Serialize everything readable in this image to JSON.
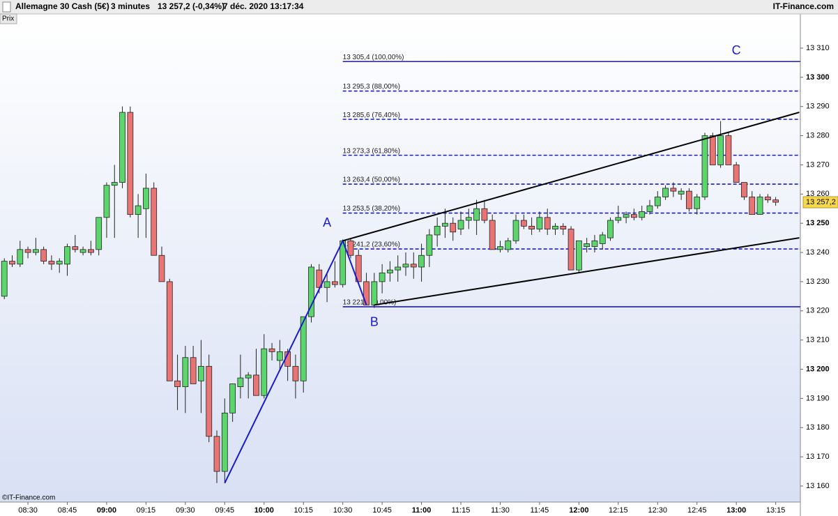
{
  "chart_data": {
    "type": "candlestick",
    "title": "Allemagne 30 Cash (5€)",
    "interval": "3 minutes",
    "quote": "13 257,2 (-0,34%)",
    "timestamp": "7 déc. 2020 13:17:34",
    "brand": "IT-Finance.com",
    "panel_label": "Prix",
    "copyright": "©IT-Finance.com",
    "categories": [
      null,
      null,
      null,
      "08:30",
      null,
      null,
      null,
      null,
      "08:45",
      null,
      null,
      null,
      null,
      "09:00",
      null,
      null,
      null,
      null,
      "09:15",
      null,
      null,
      null,
      null,
      "09:30",
      null,
      null,
      null,
      null,
      "09:45",
      null,
      null,
      null,
      null,
      "10:00",
      null,
      null,
      null,
      null,
      "10:15",
      null,
      null,
      null,
      null,
      "10:30",
      null,
      null,
      null,
      null,
      "10:45",
      null,
      null,
      null,
      null,
      "11:00",
      null,
      null,
      null,
      null,
      "11:15",
      null,
      null,
      null,
      null,
      "11:30",
      null,
      null,
      null,
      null,
      "11:45",
      null,
      null,
      null,
      null,
      "12:00",
      null,
      null,
      null,
      null,
      "12:15",
      null,
      null,
      null,
      null,
      "12:30",
      null,
      null,
      null,
      null,
      "12:45",
      null,
      null,
      null,
      null,
      "13:00",
      null,
      null,
      null,
      null,
      "13:15"
    ],
    "ohlc": {
      "open": [
        13225,
        13237,
        13236,
        13241,
        13240,
        13241,
        13237,
        13236,
        13236,
        13242,
        13240,
        13241,
        13241,
        13252,
        13263,
        13264,
        13288,
        13253,
        13255,
        13262,
        13239,
        13230,
        13196,
        13194,
        13204,
        13196,
        13201,
        13177,
        13165,
        13185,
        13194,
        13197,
        13198,
        13191,
        13207,
        13203,
        13206,
        13201,
        13196,
        13218,
        13234,
        13228,
        13230,
        13229,
        13244,
        13239,
        13230,
        13222,
        13230,
        13233,
        13234,
        13235,
        13236,
        13235,
        13239,
        13246,
        13249,
        13250,
        13248,
        13251,
        13251,
        13255,
        13251,
        13241,
        13241,
        13244,
        13251,
        13249,
        13248,
        13252,
        13248,
        13249,
        13248,
        13234,
        13242,
        13242,
        13243,
        13245,
        13251,
        13252,
        13253,
        13252,
        13254,
        13256,
        13259,
        13262,
        13260,
        13261,
        13255,
        13259,
        13280,
        13270,
        13280,
        13270,
        13264,
        13259,
        13253,
        13259,
        13258
      ],
      "high": [
        13238,
        13239,
        13244,
        13242,
        13245,
        13242,
        13239,
        13238,
        13243,
        13246,
        13242,
        13244,
        13252,
        13264,
        13270,
        13290,
        13290,
        13260,
        13267,
        13264,
        13242,
        13231,
        13205,
        13208,
        13208,
        13210,
        13205,
        13179,
        13190,
        13195,
        13205,
        13199,
        13207,
        13212,
        13209,
        13210,
        13207,
        13205,
        13218,
        13236,
        13236,
        13233,
        13237,
        13244,
        13245,
        13241,
        13233,
        13233,
        13236,
        13237,
        13239,
        13240,
        13240,
        13243,
        13248,
        13252,
        13255,
        13252,
        13254,
        13255,
        13258,
        13258,
        13253,
        13244,
        13245,
        13253,
        13253,
        13252,
        13254,
        13255,
        13250,
        13250,
        13249,
        13244,
        13245,
        13246,
        13247,
        13252,
        13256,
        13254,
        13255,
        13256,
        13258,
        13261,
        13263,
        13264,
        13262,
        13262,
        13260,
        13281,
        13281,
        13285,
        13281,
        13271,
        13264,
        13261,
        13260,
        13260,
        13259
      ],
      "low": [
        13224,
        13235,
        13235,
        13238,
        13239,
        13236,
        13234,
        13233,
        13232,
        13240,
        13239,
        13239,
        13239,
        13245,
        13245,
        13262,
        13252,
        13245,
        13245,
        13239,
        13230,
        13196,
        13186,
        13185,
        13195,
        13185,
        13175,
        13161,
        13161,
        13182,
        13190,
        13190,
        13192,
        13190,
        13203,
        13200,
        13196,
        13190,
        13192,
        13216,
        13226,
        13223,
        13228,
        13228,
        13238,
        13229,
        13222,
        13221,
        13226,
        13230,
        13230,
        13232,
        13231,
        13230,
        13235,
        13242,
        13245,
        13244,
        13246,
        13248,
        13246,
        13250,
        13241,
        13240,
        13240,
        13243,
        13248,
        13246,
        13247,
        13246,
        13246,
        13246,
        13234,
        13233,
        13240,
        13240,
        13241,
        13244,
        13250,
        13250,
        13251,
        13251,
        13253,
        13255,
        13258,
        13259,
        13258,
        13254,
        13253,
        13258,
        13270,
        13269,
        13270,
        13264,
        13258,
        13253,
        13253,
        13257,
        13256
      ],
      "close": [
        13237,
        13236,
        13241,
        13240,
        13241,
        13237,
        13236,
        13237,
        13242,
        13241,
        13241,
        13240,
        13252,
        13263,
        13264,
        13288,
        13253,
        13256,
        13262,
        13239,
        13230,
        13196,
        13194,
        13204,
        13195,
        13201,
        13177,
        13165,
        13185,
        13195,
        13197,
        13198,
        13191,
        13207,
        13206,
        13206,
        13201,
        13196,
        13218,
        13235,
        13228,
        13230,
        13229,
        13244,
        13239,
        13230,
        13222,
        13230,
        13233,
        13234,
        13235,
        13236,
        13235,
        13239,
        13246,
        13249,
        13250,
        13247,
        13251,
        13252,
        13255,
        13251,
        13241,
        13242,
        13244,
        13251,
        13249,
        13248,
        13252,
        13248,
        13249,
        13248,
        13234,
        13244,
        13243,
        13244,
        13246,
        13251,
        13252,
        13253,
        13252,
        13254,
        13256,
        13259,
        13262,
        13261,
        13261,
        13255,
        13259,
        13280,
        13270,
        13280,
        13270,
        13264,
        13259,
        13253,
        13259,
        13258,
        13257.2
      ]
    },
    "up_color": "#5cd66c",
    "down_color": "#e87474",
    "last_price": {
      "value": 13257.2,
      "label": "13 257,2"
    },
    "ylim": [
      13154.5,
      13321.7
    ],
    "yticks": [
      {
        "value": 13160,
        "label": "13 160"
      },
      {
        "value": 13170,
        "label": "13 170"
      },
      {
        "value": 13180,
        "label": "13 180"
      },
      {
        "value": 13190,
        "label": "13 190"
      },
      {
        "value": 13200,
        "label": "13 200"
      },
      {
        "value": 13210,
        "label": "13 210"
      },
      {
        "value": 13220,
        "label": "13 220"
      },
      {
        "value": 13230,
        "label": "13 230"
      },
      {
        "value": 13240,
        "label": "13 240"
      },
      {
        "value": 13250,
        "label": "13 250"
      },
      {
        "value": 13260,
        "label": "13 260"
      },
      {
        "value": 13270,
        "label": "13 270"
      },
      {
        "value": 13280,
        "label": "13 280"
      },
      {
        "value": 13290,
        "label": "13 290"
      },
      {
        "value": 13300,
        "label": "13 300"
      },
      {
        "value": 13310,
        "label": "13 310"
      }
    ],
    "fibonacci": {
      "start": "10:30",
      "color": "#1a1ad0",
      "levels": [
        {
          "value": 13305.4,
          "label": "13 305,4 (100,00%)",
          "style": "solid"
        },
        {
          "value": 13295.3,
          "label": "13 295,3 (88,00%)",
          "style": "dashed"
        },
        {
          "value": 13285.6,
          "label": "13 285,6 (76,40%)",
          "style": "dashed"
        },
        {
          "value": 13273.3,
          "label": "13 273,3 (61,80%)",
          "style": "dashed"
        },
        {
          "value": 13263.4,
          "label": "13 263,4 (50,00%)",
          "style": "dashed"
        },
        {
          "value": 13253.5,
          "label": "13 253,5 (38,20%)",
          "style": "dashed"
        },
        {
          "value": 13241.2,
          "label": "13 241,2 (23,60%)",
          "style": "dashed"
        },
        {
          "value": 13221.4,
          "label": "13 221,4 (0,00%)",
          "style": "solid"
        }
      ]
    },
    "lines": [
      {
        "color": "#1a1ad0",
        "points": [
          {
            "index": 28,
            "value": 13161
          },
          {
            "index": 43,
            "value": 13244
          },
          {
            "index": 46,
            "value": 13222
          }
        ]
      },
      {
        "color": "#000000",
        "points": [
          {
            "index": 43,
            "value": 13244
          },
          {
            "index": 101,
            "value": 13288
          }
        ]
      },
      {
        "color": "#000000",
        "points": [
          {
            "index": 47,
            "value": 13222
          },
          {
            "index": 101,
            "value": 13245
          }
        ]
      }
    ],
    "annotations": [
      {
        "text": "A",
        "index": 41,
        "value": 13250
      },
      {
        "text": "B",
        "index": 47,
        "value": 13216
      },
      {
        "text": "C",
        "index": 93,
        "value": 13309
      }
    ]
  }
}
